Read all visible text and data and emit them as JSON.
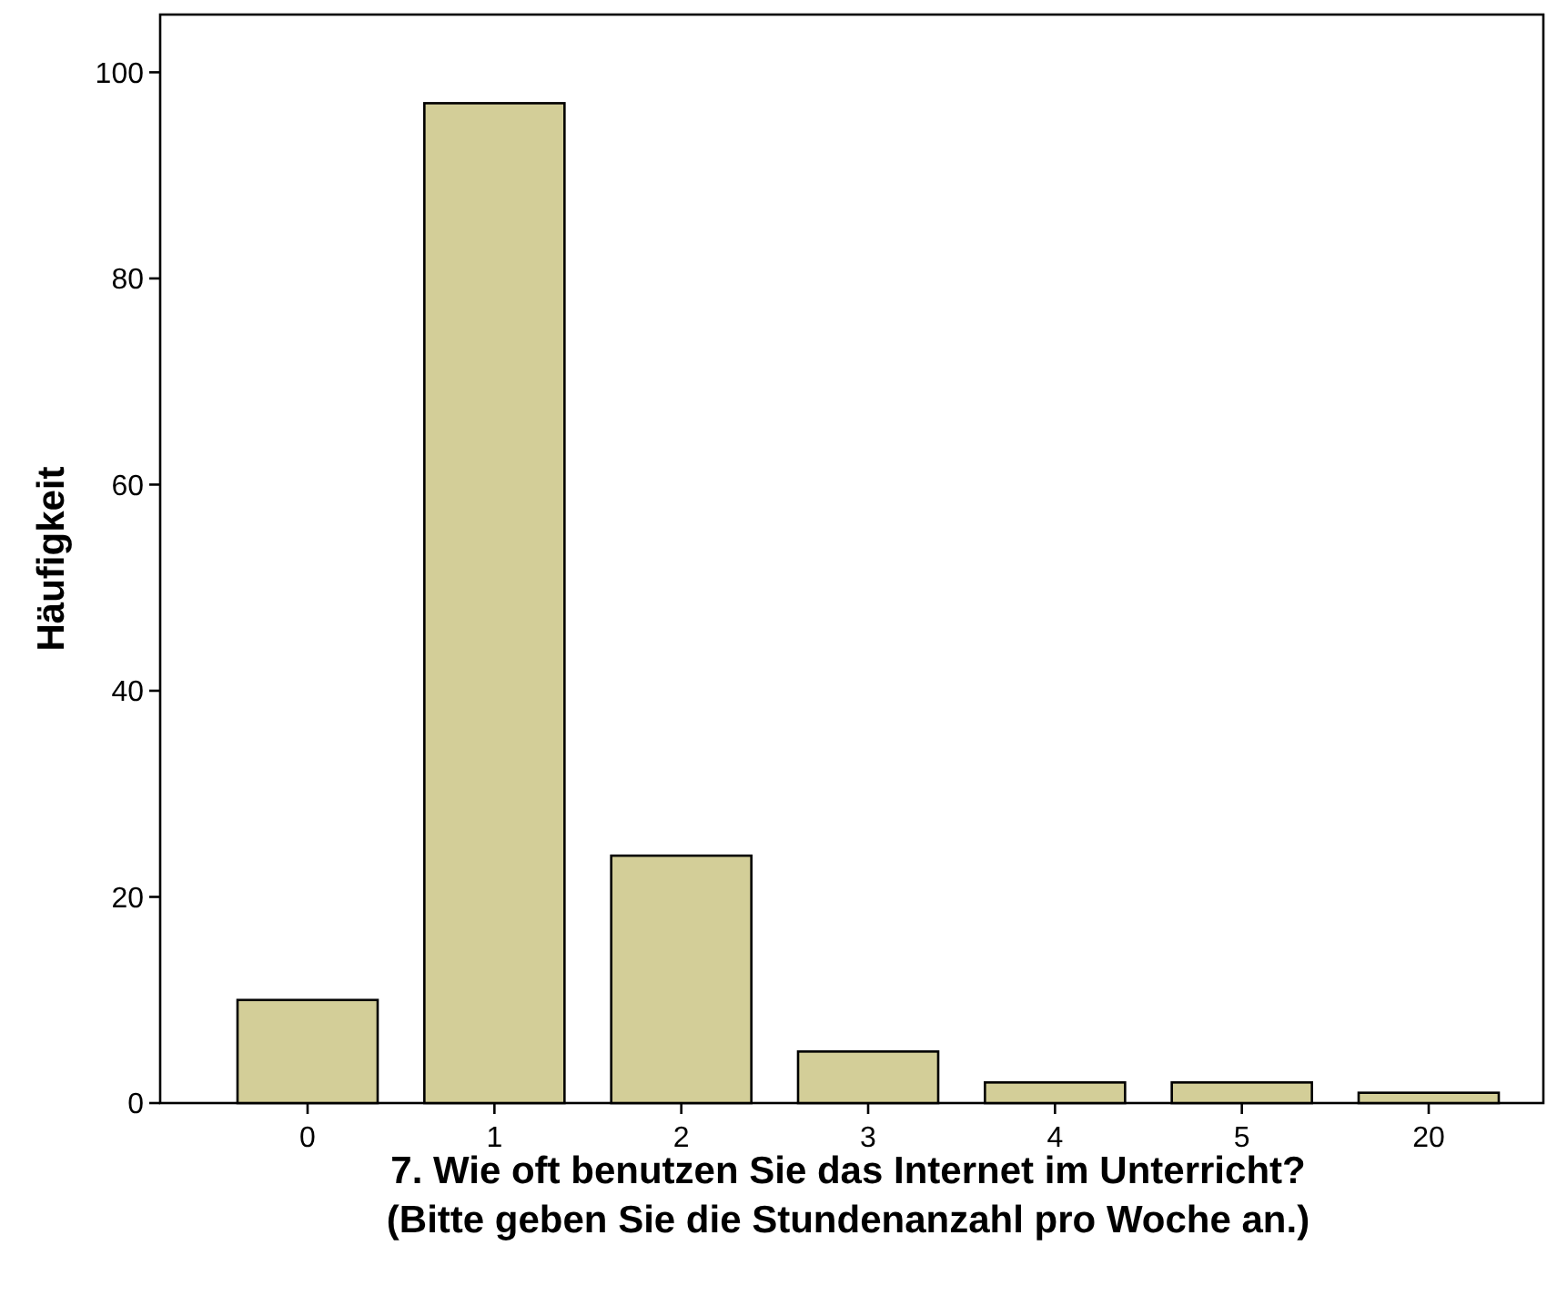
{
  "chart_data": {
    "type": "bar",
    "xlabel": "7. Wie oft benutzen Sie das Internet im Unterricht? (Bitte geben Sie die Stundenanzahl pro Woche an.)",
    "ylabel": "Häufigkeit",
    "categories": [
      "0",
      "1",
      "2",
      "3",
      "4",
      "5",
      "20"
    ],
    "values": [
      10,
      97,
      24,
      5,
      2,
      2,
      1
    ],
    "color": "#d3ce98",
    "ylim": [
      0,
      105.6
    ],
    "yticks": [
      0,
      20,
      40,
      60,
      80,
      100
    ],
    "grid": false
  }
}
